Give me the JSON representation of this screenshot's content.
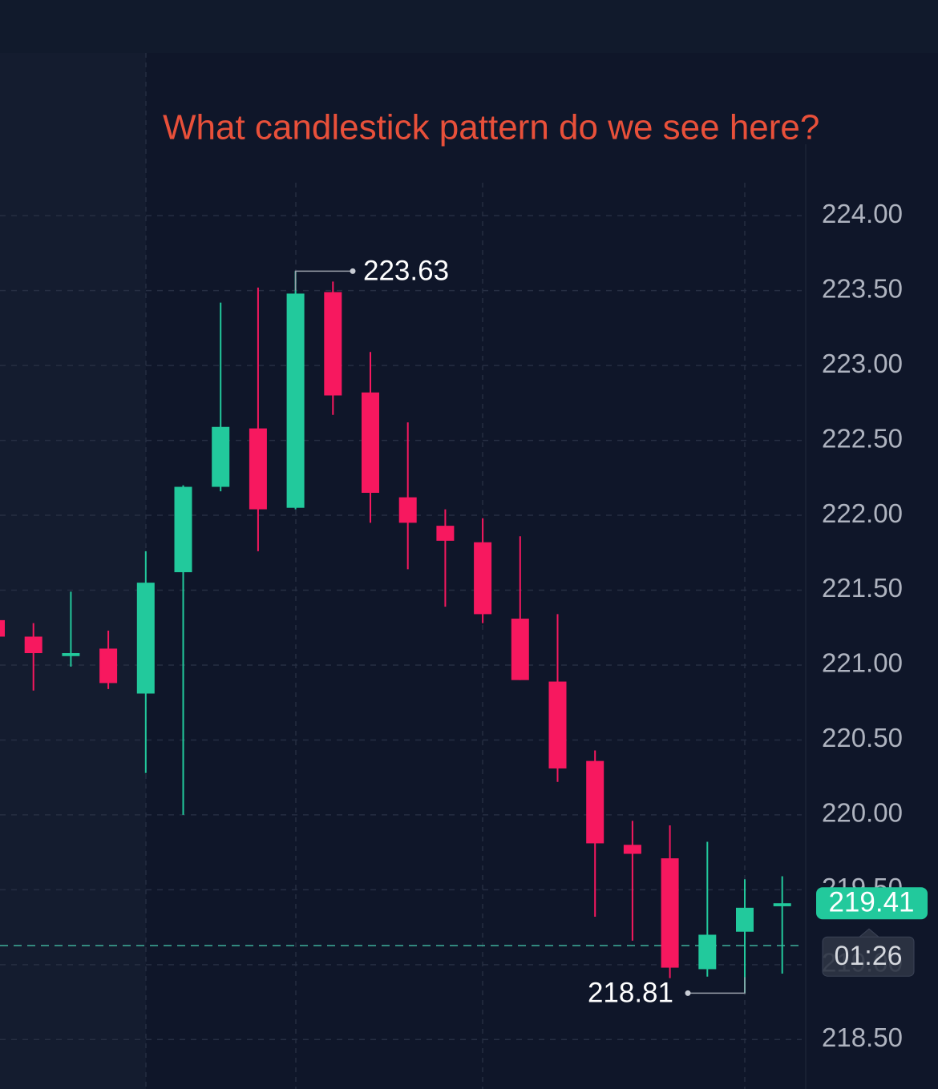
{
  "chart_data": {
    "type": "candlestick",
    "title": "What candlestick pattern do we see here?",
    "open": [
      221.3,
      221.19,
      221.06,
      221.11,
      220.81,
      221.62,
      222.19,
      222.58,
      222.05,
      223.49,
      222.82,
      222.12,
      221.93,
      221.82,
      221.31,
      220.89,
      220.36,
      219.8,
      219.71,
      218.97,
      219.22,
      219.39
    ],
    "high": [
      221.32,
      221.28,
      221.49,
      221.23,
      221.76,
      222.2,
      223.42,
      223.52,
      223.63,
      223.56,
      223.09,
      222.62,
      222.04,
      221.98,
      221.86,
      221.34,
      220.43,
      219.96,
      219.93,
      219.82,
      219.57,
      219.59
    ],
    "low": [
      221.17,
      220.83,
      220.99,
      220.84,
      220.28,
      220.0,
      222.16,
      221.76,
      222.04,
      222.67,
      221.95,
      221.64,
      221.39,
      221.28,
      220.9,
      220.22,
      219.32,
      219.16,
      218.91,
      218.92,
      218.81,
      218.94
    ],
    "close": [
      221.19,
      221.08,
      221.08,
      220.88,
      221.55,
      222.19,
      222.59,
      222.04,
      223.48,
      222.8,
      222.15,
      221.95,
      221.83,
      221.34,
      220.9,
      220.31,
      219.81,
      219.74,
      218.98,
      219.2,
      219.38,
      219.41
    ],
    "up_color": "#22c99c",
    "down_color": "#f7185f",
    "ylim": [
      218.17,
      225.44
    ],
    "yticks": [
      {
        "value": 218.5,
        "label": "218.50"
      },
      {
        "value": 219,
        "label": "219.00"
      },
      {
        "value": 219.5,
        "label": "219.50"
      },
      {
        "value": 220,
        "label": "220.00"
      },
      {
        "value": 220.5,
        "label": "220.50"
      },
      {
        "value": 221,
        "label": "221.00"
      },
      {
        "value": 221.5,
        "label": "221.50"
      },
      {
        "value": 222,
        "label": "222.00"
      },
      {
        "value": 222.5,
        "label": "222.50"
      },
      {
        "value": 223,
        "label": "223.00"
      },
      {
        "value": 223.5,
        "label": "223.50"
      },
      {
        "value": 224,
        "label": "224.00"
      }
    ],
    "grid": true,
    "high_marker": 223.63,
    "low_marker": 218.81,
    "last_price": 219.41,
    "countdown": "01:26"
  }
}
